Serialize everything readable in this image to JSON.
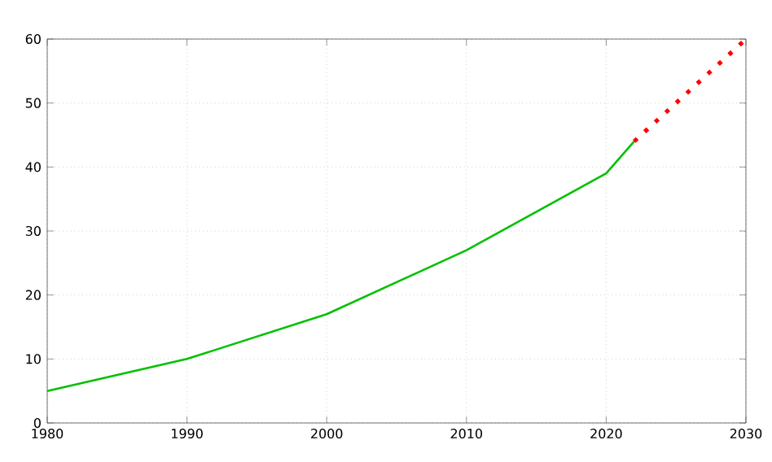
{
  "chart_data": {
    "type": "line",
    "xlim": [
      1980,
      2030
    ],
    "ylim": [
      0,
      60
    ],
    "xticks": [
      1980,
      1990,
      2000,
      2010,
      2020,
      2030
    ],
    "yticks": [
      0,
      10,
      20,
      30,
      40,
      50,
      60
    ],
    "grid": true,
    "series": [
      {
        "color": "#00c000",
        "x": [
          1980,
          1990,
          2000,
          2010,
          2020,
          2022
        ],
        "values": [
          5,
          10,
          17,
          27,
          39,
          44
        ],
        "line_style": "solid"
      },
      {
        "color": "#ff0000",
        "x": [
          2022,
          2030
        ],
        "values": [
          44,
          60
        ],
        "line_style": "dotted"
      }
    ]
  }
}
